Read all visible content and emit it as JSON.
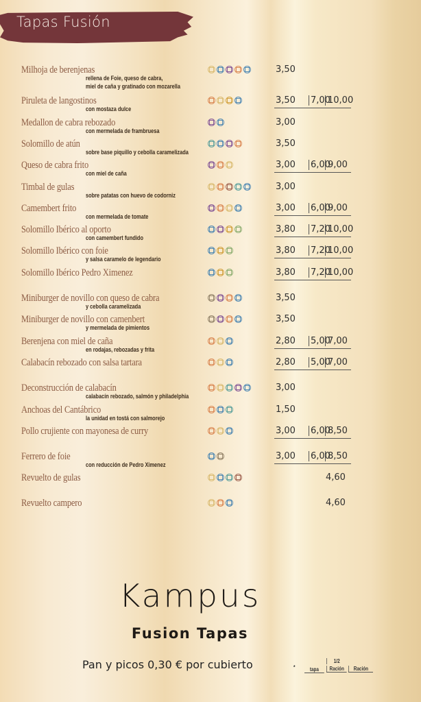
{
  "header": {
    "title": "Tapas Fusión"
  },
  "icon_colors": {
    "Y": "#d8b86a",
    "B": "#3f7fb0",
    "P": "#7a4a92",
    "O": "#d8804a",
    "T": "#4f9a98",
    "G": "#cf9a30",
    "V": "#86aa6a",
    "K": "#8a7a60",
    "R": "#9a5a48"
  },
  "menu": [
    {
      "name": "Milhoja de berenjenas",
      "desc": [
        "rellena de Foie, queso de cabra,",
        "miel de caña y gratinado con mozarella"
      ],
      "icons": "YBPOB",
      "prices": [
        "3,50"
      ]
    },
    {
      "name": "Piruleta de langostinos",
      "desc": [
        "con mostaza dulce"
      ],
      "icons": "OYGB",
      "prices": [
        "3,50",
        "7,00",
        "10,00"
      ]
    },
    {
      "name": "Medallon de cabra rebozado",
      "desc": [
        "con mermelada de frambruesa"
      ],
      "icons": "PB",
      "prices": [
        "3,00"
      ]
    },
    {
      "name": "Solomillo de atún",
      "desc": [
        "sobre base piquillo y cebolla caramelizada"
      ],
      "icons": "TBPO",
      "prices": [
        "3,50"
      ]
    },
    {
      "name": "Queso de cabra frito",
      "desc": [
        "con miel de caña"
      ],
      "icons": "POY",
      "prices": [
        "3,00",
        "6,00",
        "9,00"
      ]
    },
    {
      "name": "Timbal de gulas",
      "desc": [
        "sobre patatas con huevo de codorniz"
      ],
      "icons": "YORTB",
      "prices": [
        "3,00"
      ]
    },
    {
      "name": "Camembert frito",
      "desc": [
        "con mermelada de tomate"
      ],
      "icons": "POYB",
      "prices": [
        "3,00",
        "6,00",
        "9,00"
      ]
    },
    {
      "name": "Solomillo Ibérico al oporto",
      "desc": [
        "con camembert fundido"
      ],
      "icons": "BPGV",
      "prices": [
        "3,80",
        "7,20",
        "10,00"
      ]
    },
    {
      "name": "Solomillo Ibérico con foie",
      "desc": [
        "y salsa caramelo de legendario"
      ],
      "icons": "BGV",
      "prices": [
        "3,80",
        "7,20",
        "10,00"
      ]
    },
    {
      "name": "Solomillo Ibérico Pedro Ximenez",
      "desc": [],
      "icons": "BGV",
      "prices": [
        "3,80",
        "7,20",
        "10,00"
      ]
    },
    {
      "name": "Miniburger de novillo con queso de cabra",
      "desc": [
        "y cebolla caramelizada"
      ],
      "icons": "KPOB",
      "prices": [
        "3,50"
      ]
    },
    {
      "name": "Miniburger de novillo con camenbert",
      "desc": [
        "y mermelada de pimientos"
      ],
      "icons": "KPOB",
      "prices": [
        "3,50"
      ]
    },
    {
      "name": "Berenjena con miel de caña",
      "desc": [
        "en rodajas, rebozadas y frita"
      ],
      "icons": "OYB",
      "prices": [
        "2,80",
        "5,00",
        "7,00"
      ]
    },
    {
      "name": "Calabacín rebozado con salsa tartara",
      "desc": [],
      "icons": "OYB",
      "prices": [
        "2,80",
        "5,00",
        "7,00"
      ]
    },
    {
      "name": "Deconstrucción de calabacín",
      "desc": [
        "calabacín rebozado, salmón y philadelphia"
      ],
      "icons": "OYTPB",
      "prices": [
        "3,00"
      ]
    },
    {
      "name": "Anchoas del Cantábrico",
      "desc": [
        "la unidad en tostá con salmorejo"
      ],
      "icons": "OBT",
      "prices": [
        "1,50"
      ]
    },
    {
      "name": "Pollo crujiente con mayonesa de curry",
      "desc": [],
      "icons": "OYB",
      "prices": [
        "3,00",
        "6,00",
        "8,50"
      ]
    },
    {
      "name": "Ferrero de foie",
      "desc": [
        "con reducción de Pedro Ximenez"
      ],
      "icons": "BK",
      "prices": [
        "3,00",
        "6,00",
        "8,50"
      ]
    },
    {
      "name": "Revuelto de gulas",
      "desc": [],
      "icons": "YBTR",
      "prices": [
        "",
        "",
        "4,60"
      ]
    },
    {
      "name": "Revuelto campero",
      "desc": [],
      "icons": "YOB",
      "prices": [
        "",
        "",
        "4,60"
      ]
    }
  ],
  "logo": {
    "line1": "Kampus",
    "line2": "Fusion Tapas"
  },
  "footer": {
    "note": "Pan y picos 0,30 € por cubierto",
    "legend_star": "*",
    "legend": [
      "tapa",
      "1/2",
      "Ración",
      "Ración"
    ]
  }
}
